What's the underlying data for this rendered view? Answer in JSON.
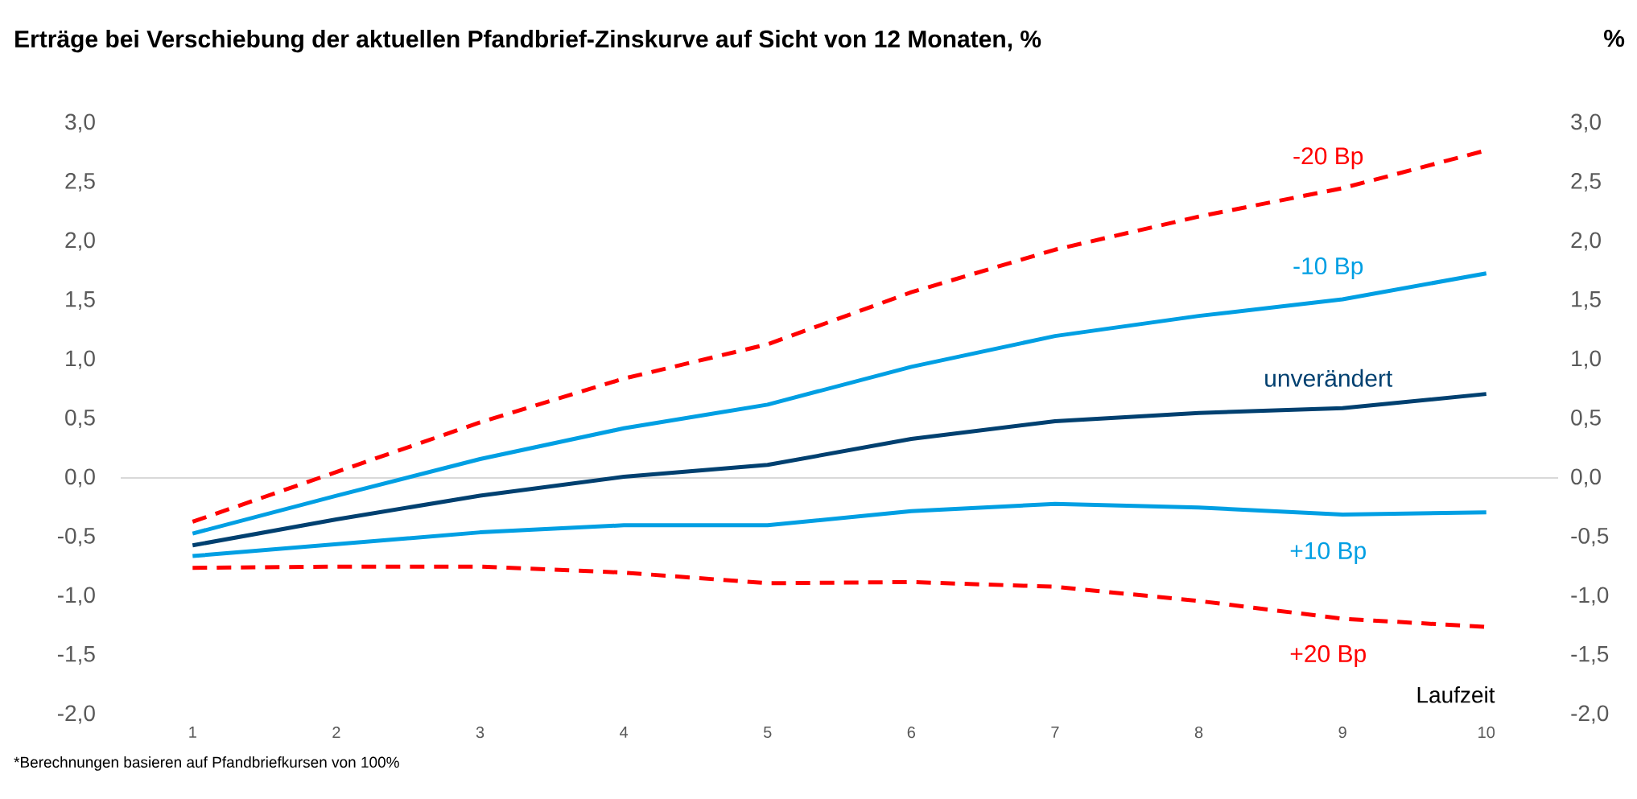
{
  "chart_data": {
    "type": "line",
    "title": "Erträge bei Verschiebung der aktuellen Pfandbrief-Zinskurve auf Sicht von 12 Monaten, %",
    "xlabel": "Laufzeit",
    "y2label": "%",
    "categories": [
      "1",
      "2",
      "3",
      "4",
      "5",
      "6",
      "7",
      "8",
      "9",
      "10"
    ],
    "series": [
      {
        "name": "-20 Bp",
        "color": "#ff0000",
        "line_style": "dashed",
        "values": [
          -0.37,
          0.05,
          0.47,
          0.84,
          1.13,
          1.57,
          1.93,
          2.21,
          2.45,
          2.77
        ]
      },
      {
        "name": "-10 Bp",
        "color": "#009fe3",
        "line_style": "solid",
        "values": [
          -0.47,
          -0.15,
          0.16,
          0.42,
          0.62,
          0.94,
          1.2,
          1.37,
          1.51,
          1.73
        ]
      },
      {
        "name": "unverändert",
        "color": "#004070",
        "line_style": "solid",
        "values": [
          -0.57,
          -0.35,
          -0.15,
          0.01,
          0.11,
          0.33,
          0.48,
          0.55,
          0.59,
          0.71
        ]
      },
      {
        "name": "+10 Bp",
        "color": "#009fe3",
        "line_style": "solid",
        "values": [
          -0.66,
          -0.56,
          -0.46,
          -0.4,
          -0.4,
          -0.28,
          -0.22,
          -0.25,
          -0.31,
          -0.29
        ]
      },
      {
        "name": "+20 Bp",
        "color": "#ff0000",
        "line_style": "dashed",
        "values": [
          -0.76,
          -0.75,
          -0.75,
          -0.8,
          -0.89,
          -0.88,
          -0.92,
          -1.04,
          -1.19,
          -1.26
        ]
      }
    ],
    "ylim": [
      -2,
      3
    ],
    "yticks": [
      {
        "value": -2,
        "label": "-2,0"
      },
      {
        "value": -1.5,
        "label": "-1,5"
      },
      {
        "value": -1,
        "label": "-1,0"
      },
      {
        "value": -0.5,
        "label": "-0,5"
      },
      {
        "value": 0,
        "label": "0,0"
      },
      {
        "value": 0.5,
        "label": "0,5"
      },
      {
        "value": 1,
        "label": "1,0"
      },
      {
        "value": 1.5,
        "label": "1,5"
      },
      {
        "value": 2,
        "label": "2,0"
      },
      {
        "value": 2.5,
        "label": "2,5"
      },
      {
        "value": 3,
        "label": "3,0"
      }
    ],
    "y2lim": [
      -2,
      3
    ],
    "y2ticks": [
      {
        "value": -2,
        "label": "-2,0"
      },
      {
        "value": -1.5,
        "label": "-1,5"
      },
      {
        "value": -1,
        "label": "-1,0"
      },
      {
        "value": -0.5,
        "label": "-0,5"
      },
      {
        "value": 0,
        "label": "0,0"
      },
      {
        "value": 0.5,
        "label": "0,5"
      },
      {
        "value": 1,
        "label": "1,0"
      },
      {
        "value": 1.5,
        "label": "1,5"
      },
      {
        "value": 2,
        "label": "2,0"
      },
      {
        "value": 2.5,
        "label": "2,5"
      },
      {
        "value": 3,
        "label": "3,0"
      }
    ],
    "ref_lines": [
      {
        "axis": "y",
        "value": 0,
        "color": "#d9d9d9"
      }
    ],
    "legend": false,
    "grid": false,
    "marker": "none",
    "annotations": [
      "*Berechnungen basieren auf Pfandbriefkursen von 100%"
    ]
  }
}
